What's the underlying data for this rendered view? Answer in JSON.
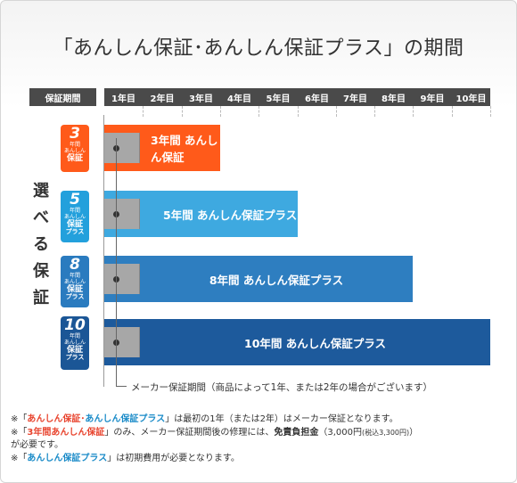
{
  "title": "「あんしん保証･あんしん保証プラス」の期間",
  "header": {
    "first": "保証期間",
    "years": [
      "1年目",
      "2年目",
      "3年目",
      "4年目",
      "5年目",
      "6年目",
      "7年目",
      "8年目",
      "9年目",
      "10年目"
    ]
  },
  "side_label": [
    "選",
    "べ",
    "る",
    "保",
    "証"
  ],
  "badges": [
    {
      "num": "3",
      "unit": "年間",
      "l1": "あんしん",
      "l2": "保証",
      "l3": "",
      "color": "#ff5a1a"
    },
    {
      "num": "5",
      "unit": "年間",
      "l1": "あんしん",
      "l2": "保証",
      "l3": "プラス",
      "color": "#23a0dc"
    },
    {
      "num": "8",
      "unit": "年間",
      "l1": "あんしん",
      "l2": "保証",
      "l3": "プラス",
      "color": "#2a7bbf"
    },
    {
      "num": "10",
      "unit": "年間",
      "l1": "あんしん",
      "l2": "保証",
      "l3": "プラス",
      "color": "#1b5696"
    }
  ],
  "bars": [
    {
      "label": "3年間 あんしん保証",
      "years": 3,
      "color": "#ff5a1a"
    },
    {
      "label": "5年間 あんしん保証プラス",
      "years": 5,
      "color": "#3ea9e0"
    },
    {
      "label": "8年間 あんしん保証プラス",
      "years": 8,
      "color": "#2e7ec0"
    },
    {
      "label": "10年間 あんしん保証プラス",
      "years": 10,
      "color": "#1d5a9c"
    }
  ],
  "maker_note": "メーカー保証期間（商品によって1年、または2年の場合がございます）",
  "notes": {
    "n1_pre": "※「",
    "n1_red": "あんしん保証",
    "n1_mid": "･",
    "n1_blue": "あんしん保証プラス",
    "n1_post": "」は最初の1年（または2年）はメーカー保証となります。",
    "n2_pre": "※「",
    "n2_red": "3年間あんしん保証",
    "n2_mid": "」のみ、メーカー保証期間後の修理には、",
    "n2_bold": "免責負担金",
    "n2_amount": "（3,000円",
    "n2_small": "(税込3,300円)",
    "n2_close": "）",
    "n2_line2": "が必要です。",
    "n3_pre": "※「",
    "n3_blue": "あんしん保証プラス",
    "n3_post": "」は初期費用が必要となります。"
  }
}
